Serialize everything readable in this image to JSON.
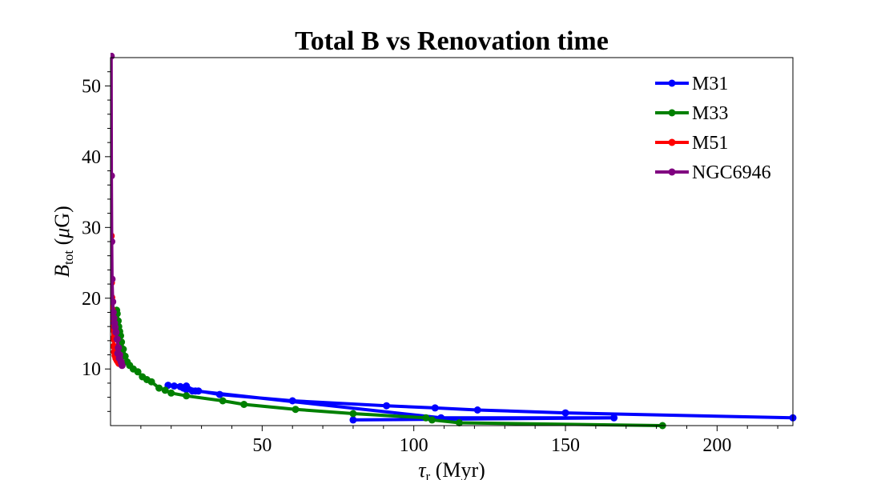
{
  "chart_data": {
    "type": "line",
    "title": "Total B vs Renovation time",
    "xlabel": {
      "symbol": "τ",
      "sub": "r",
      "unit": " (Myr)"
    },
    "ylabel": {
      "symbol": "B",
      "sub": "tot",
      "unit_open": " (",
      "unit_mu": "μ",
      "unit_close": "G)"
    },
    "xlim": [
      0,
      225
    ],
    "ylim": [
      2,
      54
    ],
    "xticks": [
      50,
      100,
      150,
      200
    ],
    "yticks": [
      10,
      20,
      30,
      40,
      50
    ],
    "grid": false,
    "legend": "top-right",
    "series": [
      {
        "name": "M31",
        "color": "#0000ff",
        "x": [
          225,
          150,
          121,
          107,
          91,
          60,
          36,
          29,
          27,
          25,
          24,
          23,
          21,
          19,
          25,
          28,
          109,
          166,
          80
        ],
        "y": [
          3.1,
          3.8,
          4.2,
          4.5,
          4.8,
          5.5,
          6.4,
          6.9,
          6.9,
          7.1,
          7.3,
          7.5,
          7.6,
          7.7,
          7.6,
          6.9,
          3.1,
          3.1,
          2.8
        ]
      },
      {
        "name": "M33",
        "color": "#008000",
        "x": [
          2.0,
          2.2,
          2.5,
          2.7,
          3.0,
          3.3,
          3.6,
          4.2,
          4.8,
          5.5,
          6.3,
          7.5,
          9.0,
          10.5,
          12,
          13.5,
          16,
          18,
          20,
          25,
          37,
          44,
          61,
          80,
          104,
          106,
          115,
          182
        ],
        "y": [
          18.3,
          17.8,
          16.8,
          16.0,
          15.3,
          14.7,
          13.8,
          12.8,
          11.8,
          11.0,
          10.5,
          10.0,
          9.6,
          8.9,
          8.5,
          8.2,
          7.3,
          7.0,
          6.6,
          6.2,
          5.5,
          5.0,
          4.3,
          3.7,
          3.1,
          2.8,
          2.4,
          2.0
        ]
      },
      {
        "name": "M51",
        "color": "#ff0000",
        "x": [
          0.2,
          0.3,
          0.4,
          0.5,
          0.6,
          0.7,
          0.9,
          1.1,
          1.3,
          1.5,
          1.8,
          2.2,
          2.5,
          2.8
        ],
        "y": [
          28.8,
          22.2,
          20.1,
          18.4,
          17.0,
          15.6,
          14.3,
          13.2,
          12.4,
          11.9,
          11.5,
          11.2,
          11.0,
          10.8
        ]
      },
      {
        "name": "NGC6946",
        "color": "#800080",
        "x": [
          0.2,
          0.3,
          0.4,
          0.5,
          0.7,
          0.9,
          1.1,
          1.3,
          1.5,
          1.8,
          2.2,
          2.6,
          3.0,
          3.5,
          3.8,
          2.9,
          2.4
        ],
        "y": [
          54.2,
          37.3,
          28.0,
          22.7,
          19.5,
          18.0,
          17.2,
          16.5,
          15.9,
          15.2,
          14.2,
          13.0,
          12.0,
          11.0,
          10.5,
          11.5,
          12.2
        ]
      }
    ]
  }
}
